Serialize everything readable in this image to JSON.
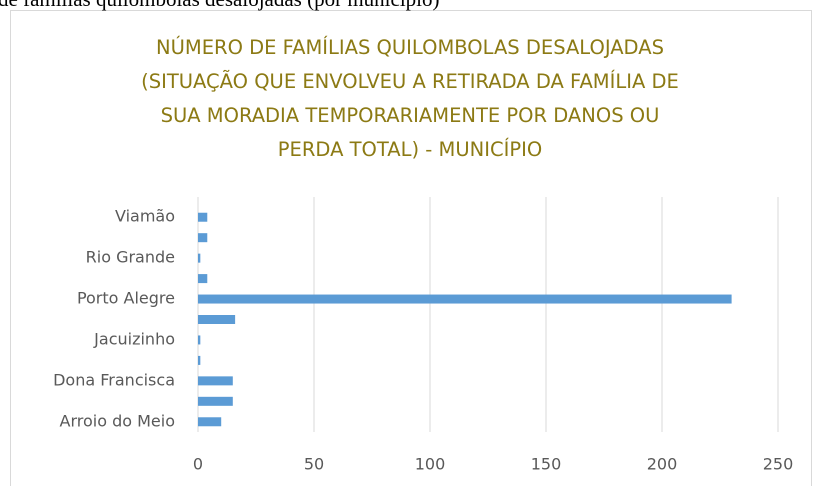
{
  "caption": "de famílias quilombolas desalojadas (por município)",
  "chart_data": {
    "type": "barh",
    "title": "NÚMERO DE FAMÍLIAS QUILOMBOLAS DESALOJADAS (SITUAÇÃO QUE ENVOLVEU A RETIRADA DA FAMÍLIA DE SUA MORADIA TEMPORARIAMENTE POR DANOS OU PERDA TOTAL) - MUNICÍPIO",
    "categories": [
      "Arroio do Meio",
      null,
      "Dona Francisca",
      null,
      "Jacuizinho",
      null,
      "Porto Alegre",
      null,
      "Rio Grande",
      null,
      "Viamão"
    ],
    "values": [
      10,
      15,
      15,
      1,
      1,
      16,
      230,
      4,
      1,
      4,
      4
    ],
    "color": "#5b9bd5",
    "xlim": [
      0,
      250
    ],
    "xticks": [
      0,
      50,
      100,
      150,
      200,
      250
    ],
    "grid": true
  }
}
